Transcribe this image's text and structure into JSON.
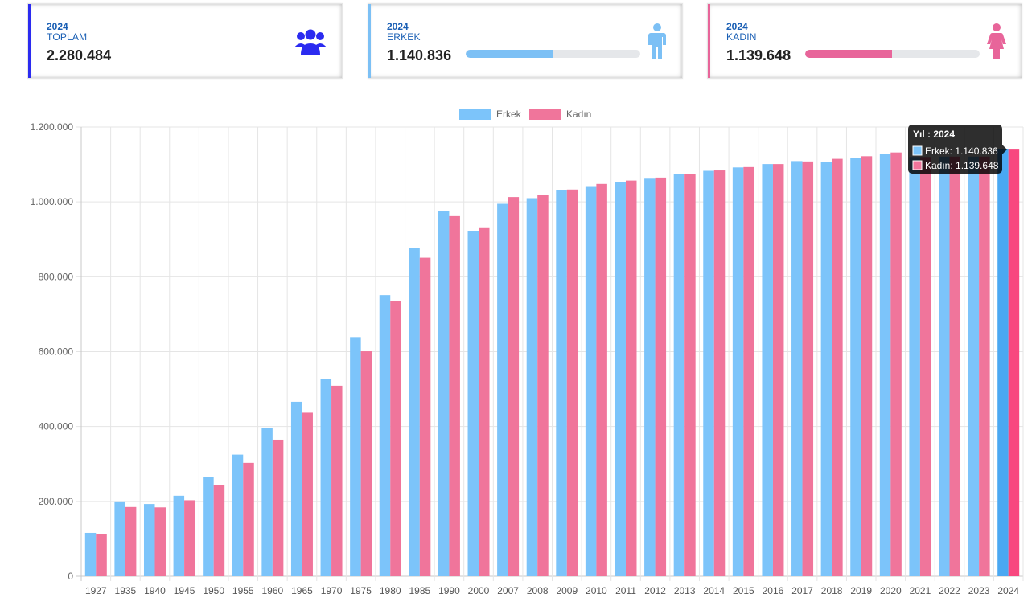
{
  "cards": [
    {
      "year": "2024",
      "label": "TOPLAM",
      "value": "2.280.484",
      "accent": "#2b2bf0",
      "icon": "people-group-icon"
    },
    {
      "year": "2024",
      "label": "ERKEK",
      "value": "1.140.836",
      "accent": "#7cc0f5",
      "progress_percent": 50.03,
      "bar_color": "#7cc0f5",
      "icon": "male-person-icon"
    },
    {
      "year": "2024",
      "label": "KADIN",
      "value": "1.139.648",
      "accent": "#e8659a",
      "progress_percent": 49.97,
      "bar_color": "#e8659a",
      "icon": "female-person-icon"
    }
  ],
  "tooltip": {
    "title": "Yıl : 2024",
    "lines": [
      "Erkek: 1.140.836",
      "Kadın: 1.139.648"
    ]
  },
  "chart_data": {
    "type": "bar",
    "title": "",
    "xlabel": "",
    "ylabel": "",
    "ylim": [
      0,
      1200000
    ],
    "yticks": [
      "0",
      "200.000",
      "400.000",
      "600.000",
      "800.000",
      "1.000.000",
      "1.200.000"
    ],
    "grid": true,
    "legend_position": "top-center",
    "categories": [
      "1927",
      "1935",
      "1940",
      "1945",
      "1950",
      "1955",
      "1960",
      "1965",
      "1970",
      "1975",
      "1980",
      "1985",
      "1990",
      "2000",
      "2007",
      "2008",
      "2009",
      "2010",
      "2011",
      "2012",
      "2013",
      "2014",
      "2015",
      "2016",
      "2017",
      "2018",
      "2019",
      "2020",
      "2021",
      "2022",
      "2023",
      "2024"
    ],
    "series": [
      {
        "name": "Erkek",
        "color": "#7cc4fa",
        "highlight_color": "#4aa8f2",
        "values": [
          116000,
          200000,
          193000,
          215000,
          265000,
          325000,
          395000,
          466000,
          527000,
          639000,
          751000,
          876000,
          975000,
          921000,
          995000,
          1010000,
          1031000,
          1040000,
          1053000,
          1062000,
          1075000,
          1083000,
          1092000,
          1101000,
          1109000,
          1107000,
          1117000,
          1128000,
          1120000,
          1121000,
          1121000,
          1140836
        ]
      },
      {
        "name": "Kadın",
        "color": "#f0759b",
        "highlight_color": "#f8477f",
        "values": [
          112000,
          185000,
          184000,
          203000,
          244000,
          303000,
          365000,
          437000,
          509000,
          601000,
          736000,
          851000,
          962000,
          930000,
          1013000,
          1019000,
          1033000,
          1048000,
          1057000,
          1065000,
          1075000,
          1084000,
          1093000,
          1101000,
          1108000,
          1115000,
          1122000,
          1132000,
          1120000,
          1121000,
          1121000,
          1139648
        ]
      }
    ]
  }
}
